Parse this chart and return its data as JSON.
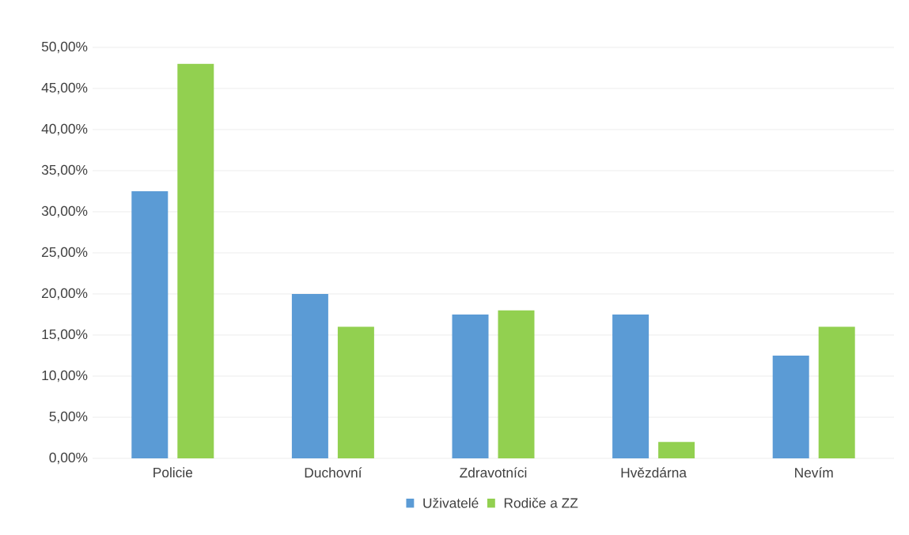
{
  "chart_data": {
    "type": "bar",
    "categories": [
      "Policie",
      "Duchovní",
      "Zdravotníci",
      "Hvězdárna",
      "Nevím"
    ],
    "series": [
      {
        "name": "Uživatelé",
        "color": "#5b9bd5",
        "values": [
          32.5,
          20,
          17.5,
          17.5,
          12.5
        ]
      },
      {
        "name": "Rodiče a ZZ",
        "color": "#92d050",
        "values": [
          48,
          16,
          18,
          2,
          16
        ]
      }
    ],
    "ylim": [
      0,
      50
    ],
    "yticks": [
      {
        "value": 0,
        "label": "0,00%"
      },
      {
        "value": 5,
        "label": "5,00%"
      },
      {
        "value": 10,
        "label": "10,00%"
      },
      {
        "value": 15,
        "label": "15,00%"
      },
      {
        "value": 20,
        "label": "20,00%"
      },
      {
        "value": 25,
        "label": "25,00%"
      },
      {
        "value": 30,
        "label": "30,00%"
      },
      {
        "value": 35,
        "label": "35,00%"
      },
      {
        "value": 40,
        "label": "40,00%"
      },
      {
        "value": 45,
        "label": "45,00%"
      },
      {
        "value": 50,
        "label": "50,00%"
      }
    ],
    "grid": "y",
    "legend": "bottom"
  }
}
